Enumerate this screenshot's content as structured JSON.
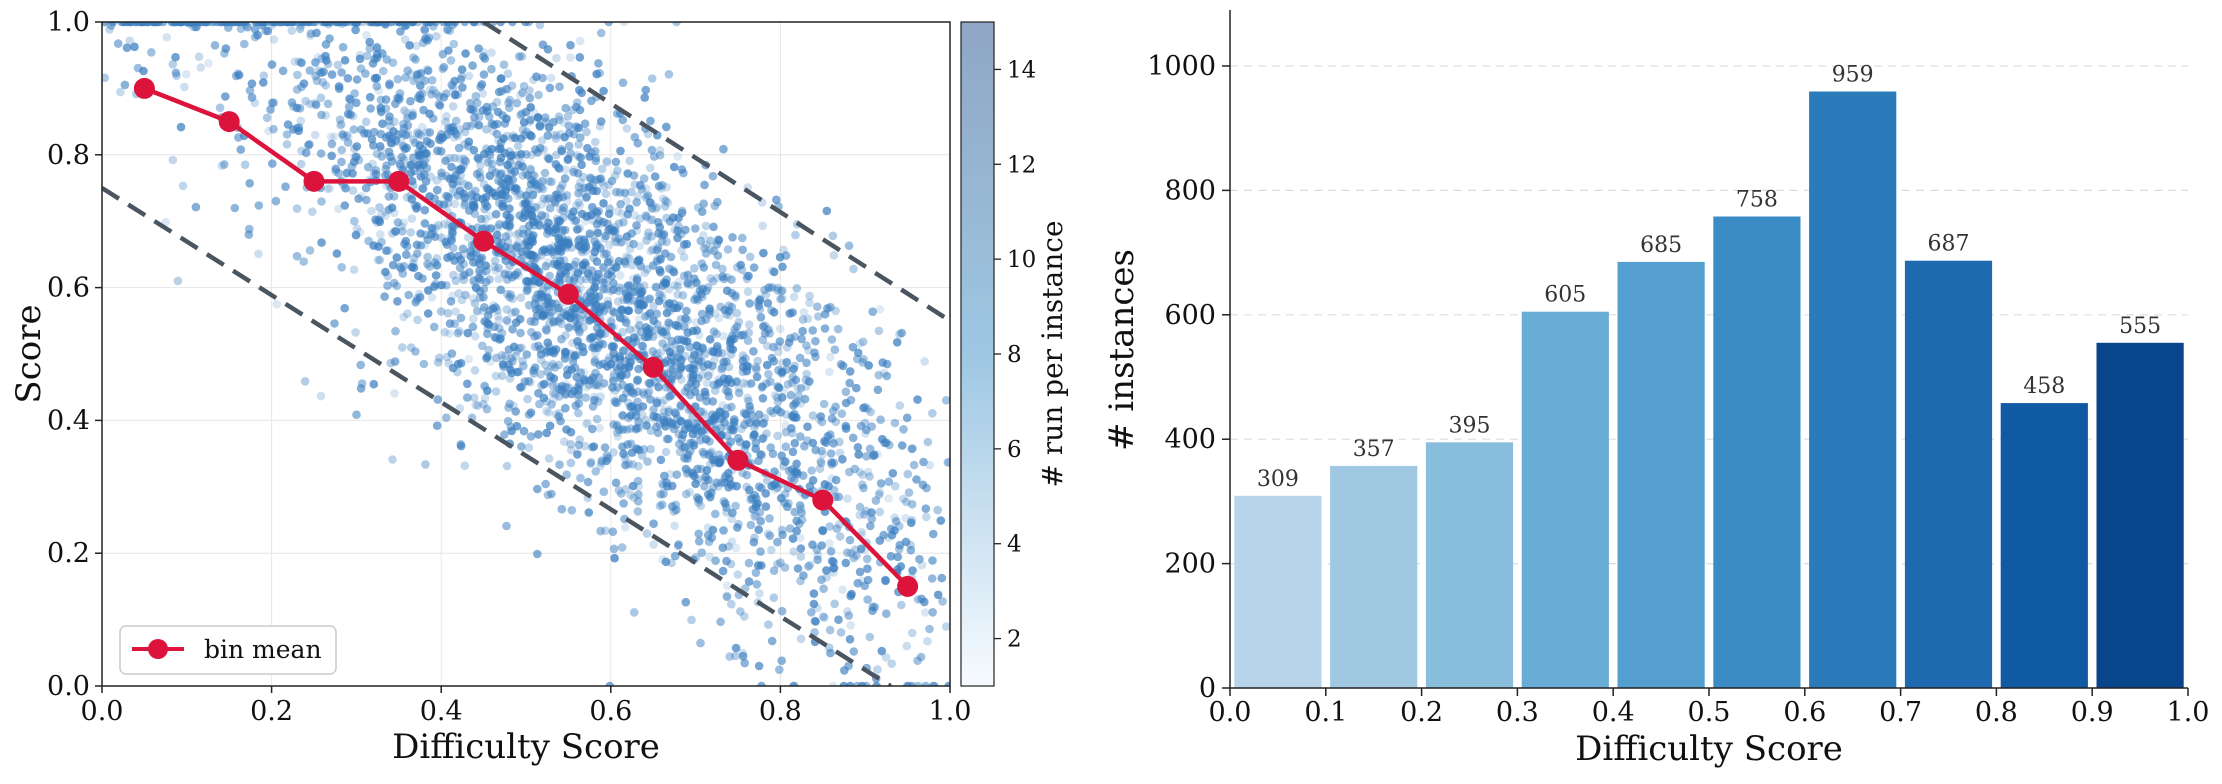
{
  "chart_data": [
    {
      "type": "scatter",
      "xlabel": "Difficulty Score",
      "ylabel": "Score",
      "xlim": [
        0,
        1
      ],
      "ylim": [
        0,
        1
      ],
      "xticks": [
        "0.0",
        "0.2",
        "0.4",
        "0.6",
        "0.8",
        "1.0"
      ],
      "yticks": [
        "0.0",
        "0.2",
        "0.4",
        "0.6",
        "0.8",
        "1.0"
      ],
      "grid": true,
      "legend": {
        "placement": "bottom-left",
        "entries": [
          "bin mean"
        ]
      },
      "colorbar": {
        "label": "# run per instance",
        "range": [
          1,
          15
        ],
        "ticks": [
          "2",
          "4",
          "6",
          "8",
          "10",
          "12",
          "14"
        ]
      },
      "colors": {
        "bin_mean": "#dc143c",
        "points": "#3a7ec0",
        "guide_lines": "#4a5560"
      },
      "series": [
        {
          "name": "bin mean",
          "x": [
            0.05,
            0.15,
            0.25,
            0.35,
            0.45,
            0.55,
            0.65,
            0.75,
            0.85,
            0.95
          ],
          "y": [
            0.9,
            0.85,
            0.76,
            0.76,
            0.67,
            0.59,
            0.48,
            0.34,
            0.28,
            0.15
          ]
        }
      ],
      "guide_lines": [
        {
          "from": [
            0.0,
            0.75
          ],
          "to": [
            0.93,
            0.0
          ]
        },
        {
          "from": [
            0.45,
            1.0
          ],
          "to": [
            1.0,
            0.55
          ]
        }
      ]
    },
    {
      "type": "bar",
      "xlabel": "Difficulty Score",
      "ylabel": "# instances",
      "xlim": [
        0,
        1
      ],
      "ylim": [
        0,
        1090
      ],
      "xticks": [
        "0.0",
        "0.1",
        "0.2",
        "0.3",
        "0.4",
        "0.5",
        "0.6",
        "0.7",
        "0.8",
        "0.9",
        "1.0"
      ],
      "yticks": [
        "0",
        "200",
        "400",
        "600",
        "800",
        "1000"
      ],
      "grid": true,
      "bin_starts": [
        0.0,
        0.1,
        0.2,
        0.3,
        0.4,
        0.5,
        0.6,
        0.7,
        0.8,
        0.9
      ],
      "values": [
        309,
        357,
        395,
        605,
        685,
        758,
        959,
        687,
        458,
        555
      ],
      "value_labels": [
        "309",
        "357",
        "395",
        "605",
        "685",
        "758",
        "959",
        "687",
        "458",
        "555"
      ],
      "bar_colors": [
        "#b7d4ea",
        "#a0c8e3",
        "#89bddc",
        "#69acd6",
        "#549fcf",
        "#3b8cc4",
        "#2b7bba",
        "#1e69b0",
        "#0f5aa3",
        "#08458a"
      ]
    }
  ]
}
